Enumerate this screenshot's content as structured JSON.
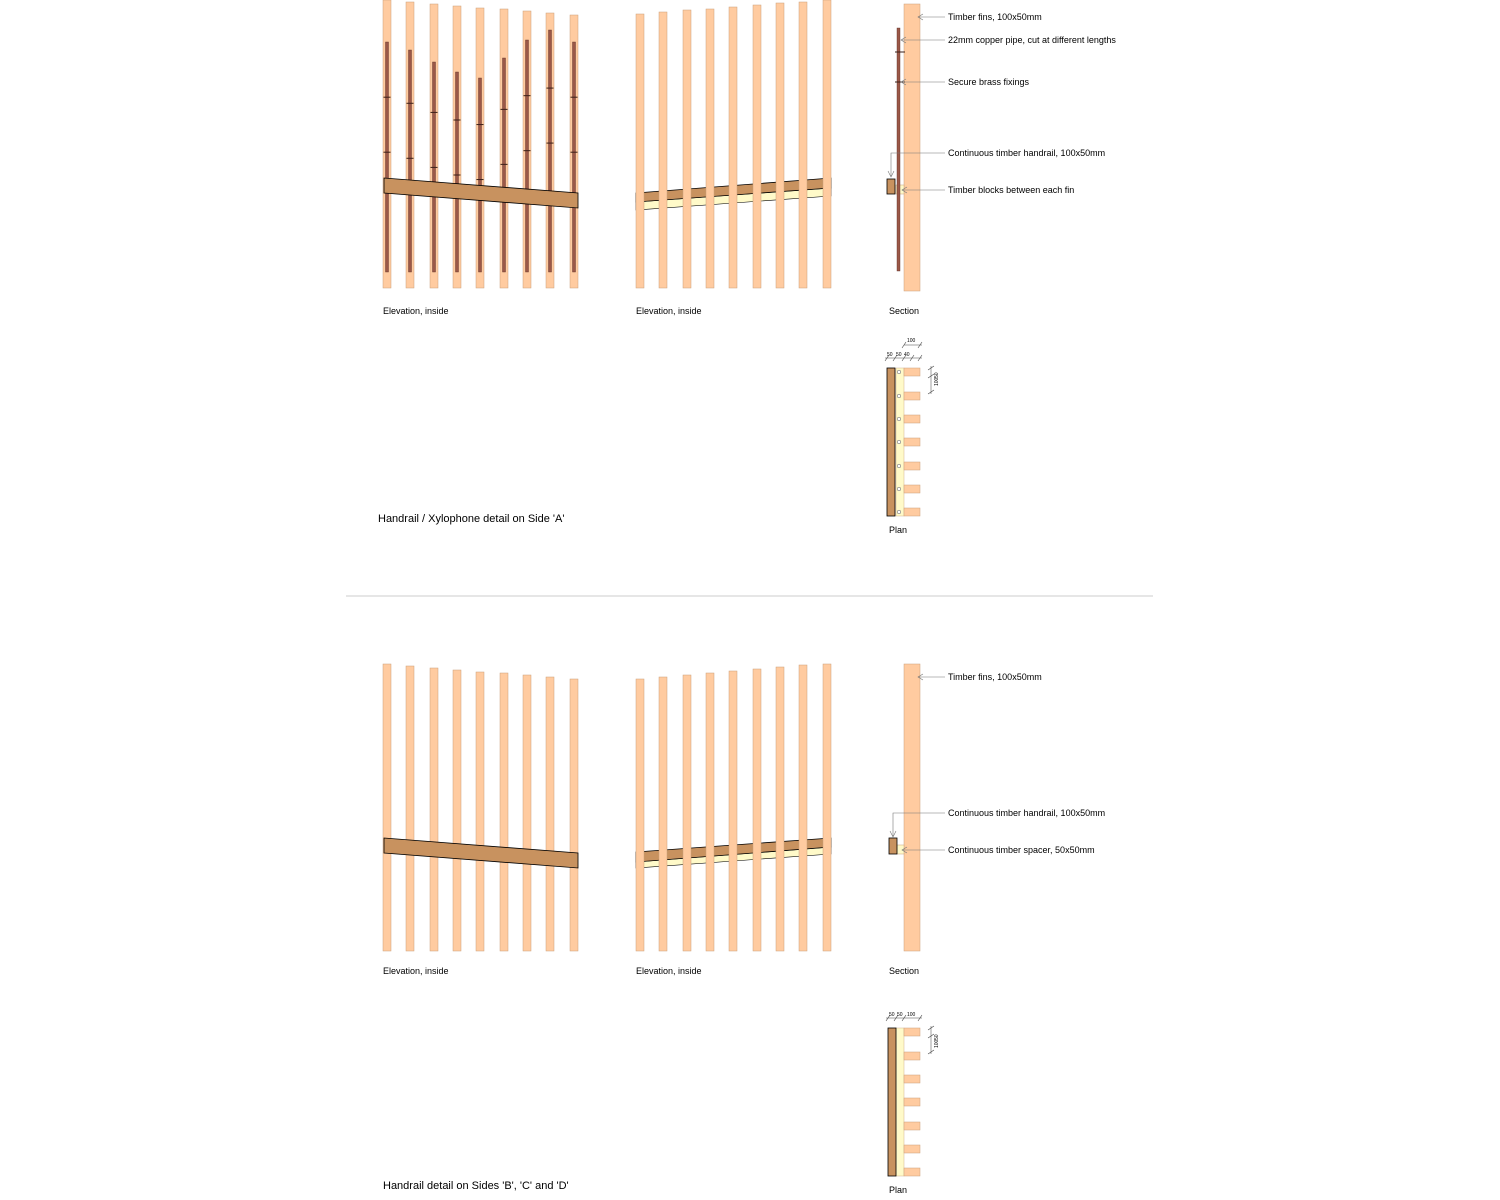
{
  "colors": {
    "fin": "#FFCBA0",
    "fin_stroke": "#C9A07A",
    "handrail": "#C8925F",
    "copper_pipe": "#9B5848",
    "spacer": "#FFFAC9",
    "leader": "#777777",
    "divider": "#CCCCCC"
  },
  "side_a": {
    "title": "Handrail / Xylophone detail on Side 'A'",
    "elevation_left_caption": "Elevation, inside",
    "elevation_right_caption": "Elevation, inside",
    "section_caption": "Section",
    "plan_caption": "Plan",
    "notes": [
      "Timber fins, 100x50mm",
      "22mm copper pipe, cut at different lengths",
      "Secure brass fixings",
      "Continuous timber handrail, 100x50mm",
      "Timber blocks between each fin"
    ],
    "plan_dims": [
      "50",
      "50",
      "40",
      "100",
      "100",
      "50"
    ]
  },
  "side_bcd": {
    "title": "Handrail detail on Sides 'B', 'C' and 'D'",
    "elevation_left_caption": "Elevation, inside",
    "elevation_right_caption": "Elevation, inside",
    "section_caption": "Section",
    "plan_caption": "Plan",
    "notes": [
      "Timber fins, 100x50mm",
      "Continuous timber handrail, 100x50mm",
      "Continuous timber spacer, 50x50mm"
    ],
    "plan_dims": [
      "50",
      "50",
      "100",
      "100",
      "50"
    ]
  }
}
